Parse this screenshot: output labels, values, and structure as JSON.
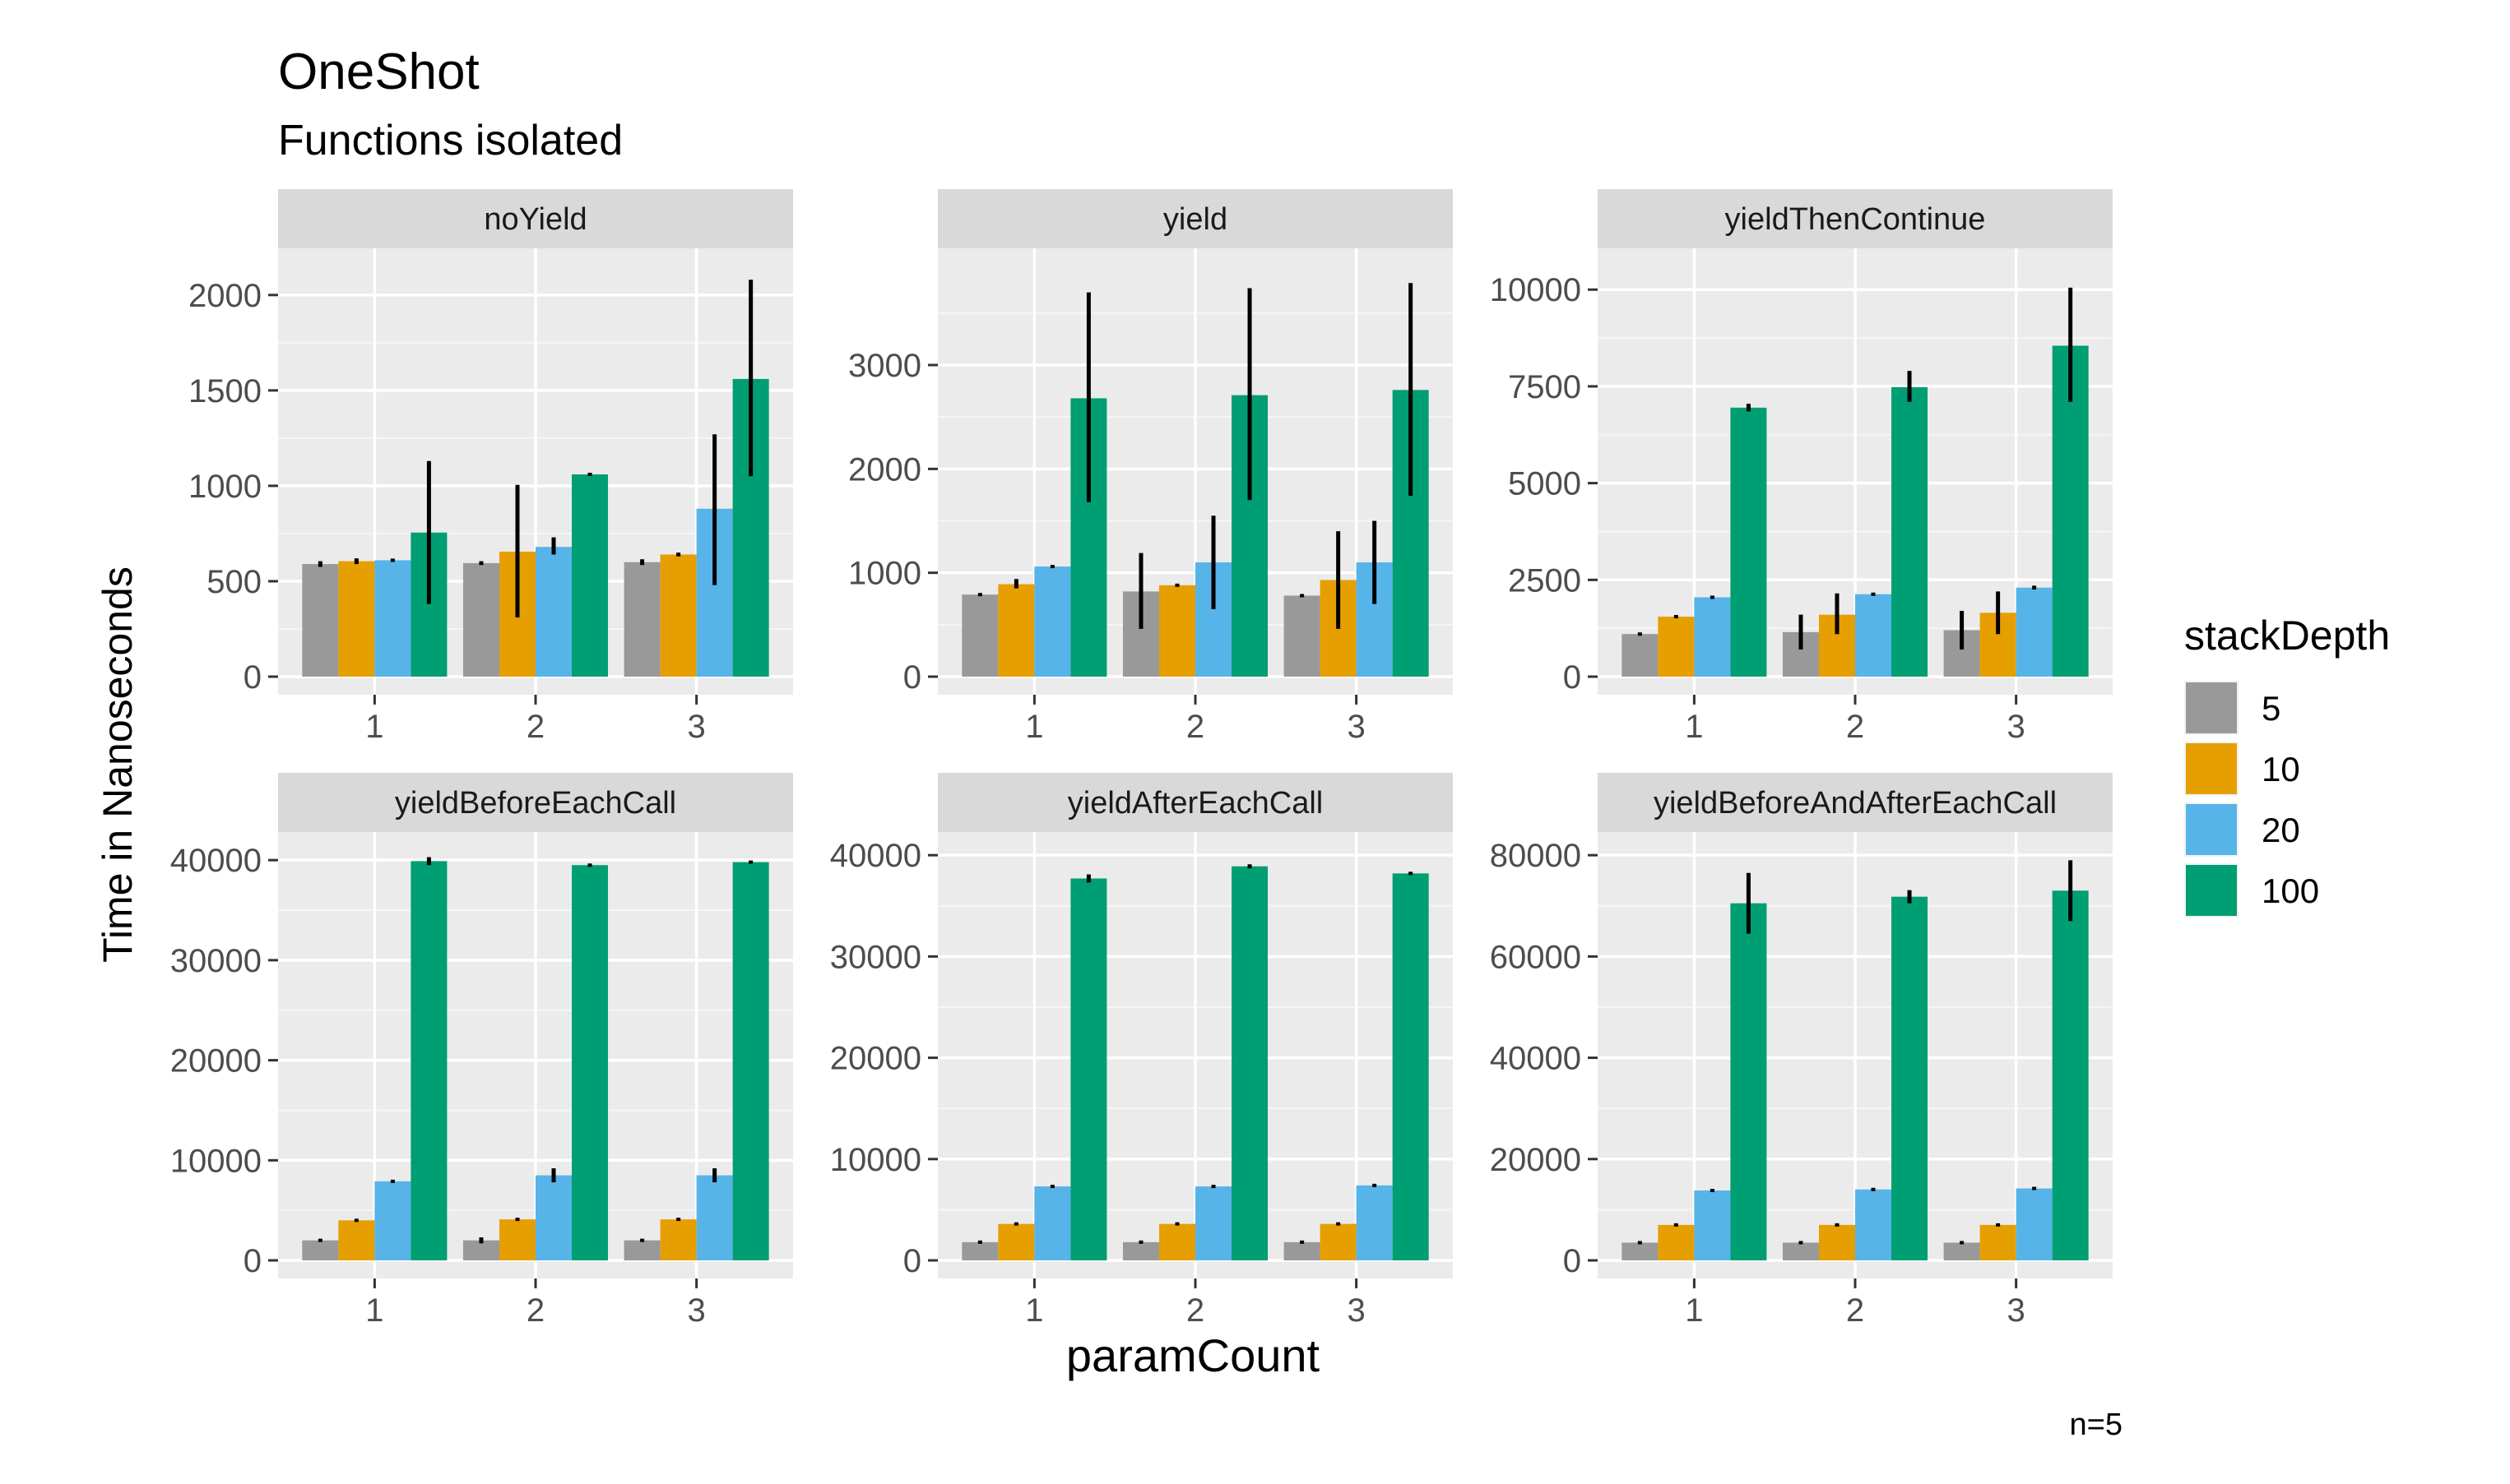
{
  "title": "OneShot",
  "subtitle": "Functions isolated",
  "xlabel": "paramCount",
  "ylabel": "Time in Nanoseconds",
  "caption": "n=5",
  "legend": {
    "title": "stackDepth",
    "position": "right",
    "items": [
      "5",
      "10",
      "20",
      "100"
    ]
  },
  "colors": {
    "5": "#999999",
    "10": "#E69F00",
    "20": "#56B4E9",
    "100": "#009E73",
    "panel_bg": "#EBEBEB",
    "strip_bg": "#D9D9D9",
    "grid": "#FFFFFF",
    "error_bar": "#000000"
  },
  "chart_data": [
    {
      "type": "bar",
      "panel": "noYield",
      "categories": [
        "1",
        "2",
        "3"
      ],
      "ylim": [
        0,
        2150
      ],
      "yticks": [
        0,
        500,
        1000,
        1500,
        2000
      ],
      "yticklabels": [
        "0",
        "500",
        "1000",
        "1500",
        "2000"
      ],
      "series": [
        {
          "name": "5",
          "values": [
            590,
            595,
            600
          ],
          "err_low": [
            575,
            585,
            585
          ],
          "err_high": [
            605,
            605,
            615
          ]
        },
        {
          "name": "10",
          "values": [
            605,
            655,
            640
          ],
          "err_low": [
            590,
            310,
            630
          ],
          "err_high": [
            620,
            1005,
            650
          ]
        },
        {
          "name": "20",
          "values": [
            610,
            680,
            880
          ],
          "err_low": [
            605,
            640,
            480
          ],
          "err_high": [
            615,
            730,
            1270
          ]
        },
        {
          "name": "100",
          "values": [
            755,
            1060,
            1560
          ],
          "err_low": [
            380,
            1055,
            1050
          ],
          "err_high": [
            1130,
            1065,
            2080
          ]
        }
      ]
    },
    {
      "type": "bar",
      "panel": "yield",
      "categories": [
        "1",
        "2",
        "3"
      ],
      "ylim": [
        0,
        3950
      ],
      "yticks": [
        0,
        1000,
        2000,
        3000
      ],
      "yticklabels": [
        "0",
        "1000",
        "2000",
        "3000"
      ],
      "series": [
        {
          "name": "5",
          "values": [
            790,
            820,
            780
          ],
          "err_low": [
            780,
            460,
            770
          ],
          "err_high": [
            800,
            1190,
            790
          ]
        },
        {
          "name": "10",
          "values": [
            890,
            880,
            930
          ],
          "err_low": [
            850,
            870,
            460
          ],
          "err_high": [
            940,
            890,
            1400
          ]
        },
        {
          "name": "20",
          "values": [
            1060,
            1100,
            1100
          ],
          "err_low": [
            1050,
            650,
            700
          ],
          "err_high": [
            1070,
            1550,
            1500
          ]
        },
        {
          "name": "100",
          "values": [
            2680,
            2710,
            2760
          ],
          "err_low": [
            1680,
            1700,
            1740
          ],
          "err_high": [
            3700,
            3740,
            3790
          ]
        }
      ]
    },
    {
      "type": "bar",
      "panel": "yieldThenContinue",
      "categories": [
        "1",
        "2",
        "3"
      ],
      "ylim": [
        0,
        10600
      ],
      "yticks": [
        0,
        2500,
        5000,
        7500,
        10000
      ],
      "yticklabels": [
        "0",
        "2500",
        "5000",
        "7500",
        "10000"
      ],
      "series": [
        {
          "name": "5",
          "values": [
            1100,
            1150,
            1200
          ],
          "err_low": [
            1090,
            700,
            700
          ],
          "err_high": [
            1110,
            1600,
            1700
          ]
        },
        {
          "name": "10",
          "values": [
            1550,
            1600,
            1650
          ],
          "err_low": [
            1540,
            1100,
            1100
          ],
          "err_high": [
            1560,
            2150,
            2200
          ]
        },
        {
          "name": "20",
          "values": [
            2050,
            2130,
            2300
          ],
          "err_low": [
            2040,
            2120,
            2250
          ],
          "err_high": [
            2060,
            2140,
            2350
          ]
        },
        {
          "name": "100",
          "values": [
            6950,
            7480,
            8550
          ],
          "err_low": [
            6850,
            7100,
            7100
          ],
          "err_high": [
            7050,
            7900,
            10050
          ]
        }
      ]
    },
    {
      "type": "bar",
      "panel": "yieldBeforeEachCall",
      "categories": [
        "1",
        "2",
        "3"
      ],
      "ylim": [
        0,
        41000
      ],
      "yticks": [
        0,
        10000,
        20000,
        30000,
        40000
      ],
      "yticklabels": [
        "0",
        "10000",
        "20000",
        "30000",
        "40000"
      ],
      "series": [
        {
          "name": "5",
          "values": [
            2000,
            2000,
            2000
          ],
          "err_low": [
            1950,
            1700,
            1950
          ],
          "err_high": [
            2050,
            2300,
            2050
          ]
        },
        {
          "name": "10",
          "values": [
            4000,
            4100,
            4100
          ],
          "err_low": [
            3950,
            4000,
            4000
          ],
          "err_high": [
            4050,
            4200,
            4200
          ]
        },
        {
          "name": "20",
          "values": [
            7900,
            8500,
            8500
          ],
          "err_low": [
            7850,
            7800,
            7800
          ],
          "err_high": [
            7950,
            9200,
            9200
          ]
        },
        {
          "name": "100",
          "values": [
            39900,
            39500,
            39800
          ],
          "err_low": [
            39500,
            39350,
            39650
          ],
          "err_high": [
            40300,
            39650,
            39950
          ]
        }
      ]
    },
    {
      "type": "bar",
      "panel": "yieldAfterEachCall",
      "categories": [
        "1",
        "2",
        "3"
      ],
      "ylim": [
        0,
        40500
      ],
      "yticks": [
        0,
        10000,
        20000,
        30000,
        40000
      ],
      "yticklabels": [
        "0",
        "10000",
        "20000",
        "30000",
        "40000"
      ],
      "series": [
        {
          "name": "5",
          "values": [
            1800,
            1800,
            1800
          ],
          "err_low": [
            1750,
            1650,
            1650
          ],
          "err_high": [
            1850,
            1950,
            1950
          ]
        },
        {
          "name": "10",
          "values": [
            3600,
            3600,
            3600
          ],
          "err_low": [
            3550,
            3550,
            3550
          ],
          "err_high": [
            3650,
            3650,
            3650
          ]
        },
        {
          "name": "20",
          "values": [
            7300,
            7300,
            7400
          ],
          "err_low": [
            7150,
            7250,
            7250
          ],
          "err_high": [
            7450,
            7350,
            7550
          ]
        },
        {
          "name": "100",
          "values": [
            37700,
            38900,
            38200
          ],
          "err_low": [
            37300,
            38700,
            38100
          ],
          "err_high": [
            38100,
            39100,
            38300
          ]
        }
      ]
    },
    {
      "type": "bar",
      "panel": "yieldBeforeAndAfterEachCall",
      "categories": [
        "1",
        "2",
        "3"
      ],
      "ylim": [
        0,
        81000
      ],
      "yticks": [
        0,
        20000,
        40000,
        60000,
        80000
      ],
      "yticklabels": [
        "0",
        "20000",
        "40000",
        "60000",
        "80000"
      ],
      "series": [
        {
          "name": "5",
          "values": [
            3500,
            3500,
            3500
          ],
          "err_low": [
            3400,
            3400,
            3400
          ],
          "err_high": [
            3600,
            3600,
            3600
          ]
        },
        {
          "name": "10",
          "values": [
            7000,
            7000,
            7000
          ],
          "err_low": [
            6900,
            6900,
            6900
          ],
          "err_high": [
            7100,
            7100,
            7100
          ]
        },
        {
          "name": "20",
          "values": [
            13800,
            14000,
            14200
          ],
          "err_low": [
            13500,
            13900,
            14000
          ],
          "err_high": [
            14100,
            14100,
            14400
          ]
        },
        {
          "name": "100",
          "values": [
            70500,
            71800,
            73000
          ],
          "err_low": [
            64500,
            70500,
            67000
          ],
          "err_high": [
            76500,
            73100,
            79000
          ]
        }
      ]
    }
  ]
}
